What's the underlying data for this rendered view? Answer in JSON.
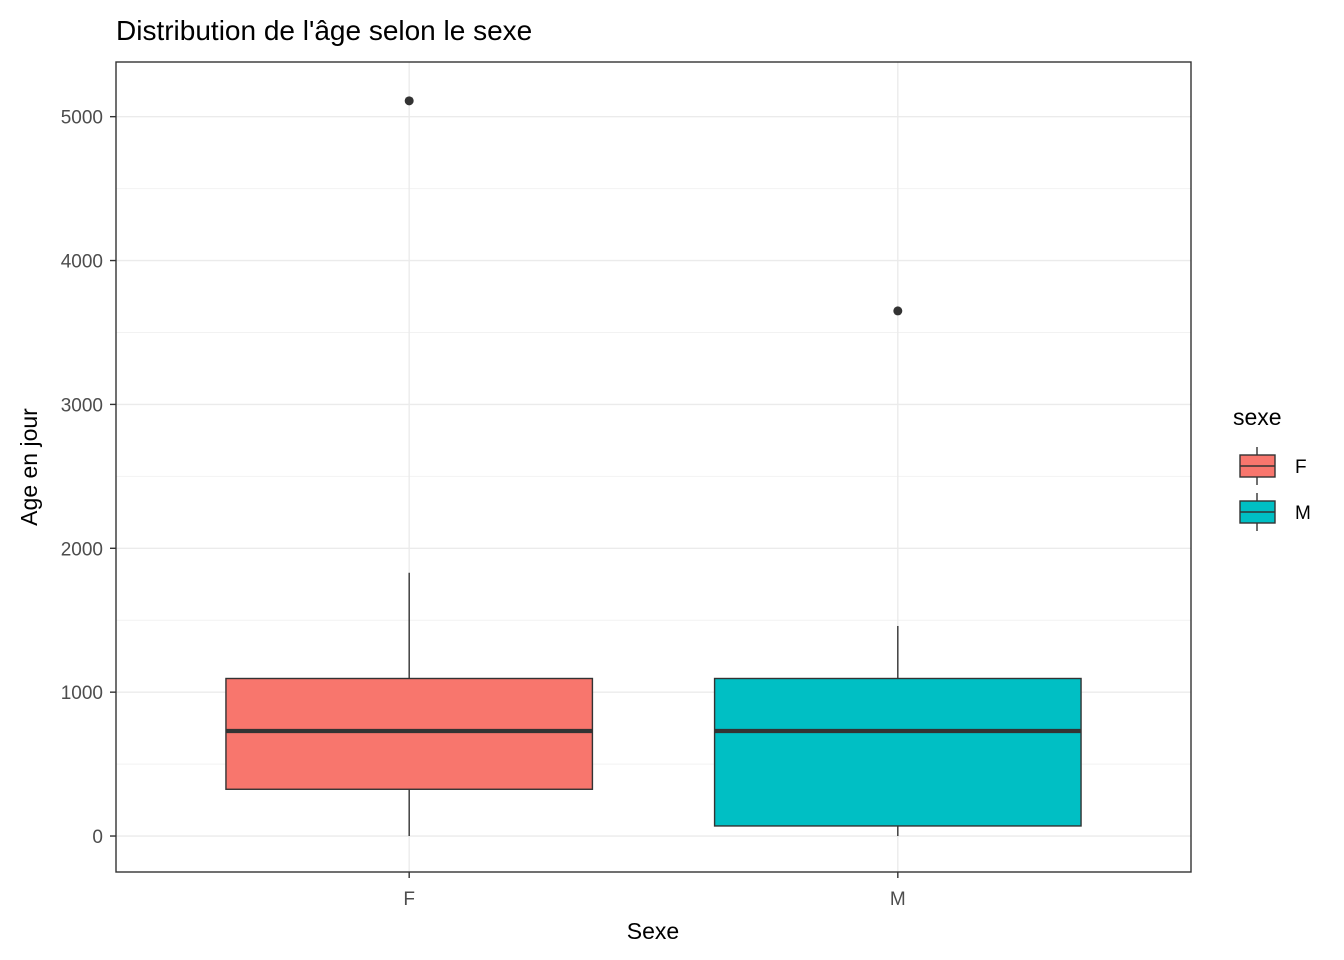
{
  "chart_data": {
    "type": "boxplot",
    "title": "Distribution de l'âge selon le sexe",
    "xlabel": "Sexe",
    "ylabel": "Age en jour",
    "ylim": [
      -250,
      5380
    ],
    "y_major_ticks": [
      0,
      1000,
      2000,
      3000,
      4000,
      5000
    ],
    "y_minor_gridlines": [
      500,
      1500,
      2500,
      3500,
      4500
    ],
    "grid": true,
    "legend": {
      "title": "sexe",
      "position": "right",
      "entries": [
        {
          "label": "F",
          "color": "#F8766D"
        },
        {
          "label": "M",
          "color": "#00BFC4"
        }
      ]
    },
    "categories": [
      "F",
      "M"
    ],
    "boxes": [
      {
        "category": "F",
        "color": "#F8766D",
        "whisker_low": 0,
        "q1": 325,
        "median": 730,
        "q3": 1095,
        "whisker_high": 1830,
        "outliers": [
          5110
        ]
      },
      {
        "category": "M",
        "color": "#00BFC4",
        "whisker_low": 0,
        "q1": 70,
        "median": 730,
        "q3": 1095,
        "whisker_high": 1460,
        "outliers": [
          3650
        ]
      }
    ]
  }
}
